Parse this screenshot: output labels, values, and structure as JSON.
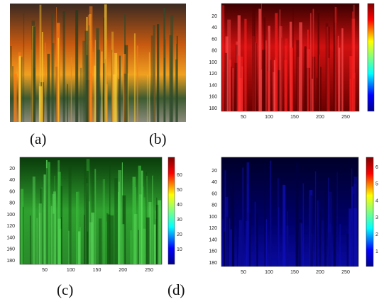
{
  "figure": {
    "captions": [
      "(a)",
      "(b)",
      "(c)",
      "(d)"
    ],
    "panel_b": {
      "yticks": [
        20,
        40,
        60,
        80,
        100,
        120,
        140,
        160,
        180
      ],
      "xticks": [
        50,
        100,
        150,
        200,
        250
      ]
    },
    "panel_c": {
      "yticks": [
        20,
        40,
        60,
        80,
        100,
        120,
        140,
        160,
        180
      ],
      "xticks": [
        50,
        100,
        150,
        200,
        250
      ],
      "colorbar_ticks": [
        10,
        20,
        30,
        40,
        50,
        60
      ]
    },
    "panel_d": {
      "yticks": [
        20,
        40,
        60,
        80,
        100,
        120,
        140,
        160,
        180
      ],
      "xticks": [
        50,
        100,
        150,
        200,
        250
      ],
      "colorbar_ticks": [
        1,
        2,
        3,
        4,
        5,
        6
      ]
    }
  }
}
